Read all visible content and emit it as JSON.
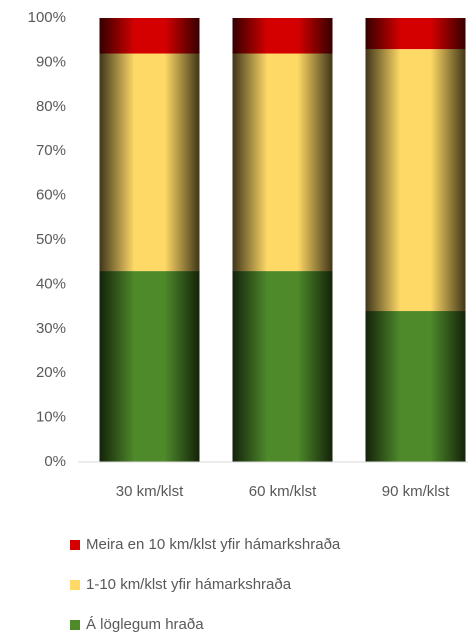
{
  "chart_data": {
    "type": "stacked_bar",
    "categories": [
      "30 km/klst",
      "60 km/klst",
      "90 km/klst"
    ],
    "series": [
      {
        "name": "Á löglegum hraða",
        "color": "#4e8a2a",
        "values": [
          43,
          43,
          34
        ]
      },
      {
        "name": "1-10 km/klst yfir hámarkshraða",
        "color": "#ffd966",
        "values": [
          49,
          49,
          59
        ]
      },
      {
        "name": "Meira en 10 km/klst yfir hámarkshraða",
        "color": "#d40000",
        "values": [
          8,
          8,
          7
        ]
      }
    ],
    "ylim": [
      0,
      100
    ],
    "yticks": [
      {
        "value": 0,
        "label": "0%"
      },
      {
        "value": 10,
        "label": "10%"
      },
      {
        "value": 20,
        "label": "20%"
      },
      {
        "value": 30,
        "label": "30%"
      },
      {
        "value": 40,
        "label": "40%"
      },
      {
        "value": 50,
        "label": "50%"
      },
      {
        "value": 60,
        "label": "60%"
      },
      {
        "value": 70,
        "label": "70%"
      },
      {
        "value": 80,
        "label": "80%"
      },
      {
        "value": 90,
        "label": "90%"
      },
      {
        "value": 100,
        "label": "100%"
      }
    ],
    "grid": false
  }
}
